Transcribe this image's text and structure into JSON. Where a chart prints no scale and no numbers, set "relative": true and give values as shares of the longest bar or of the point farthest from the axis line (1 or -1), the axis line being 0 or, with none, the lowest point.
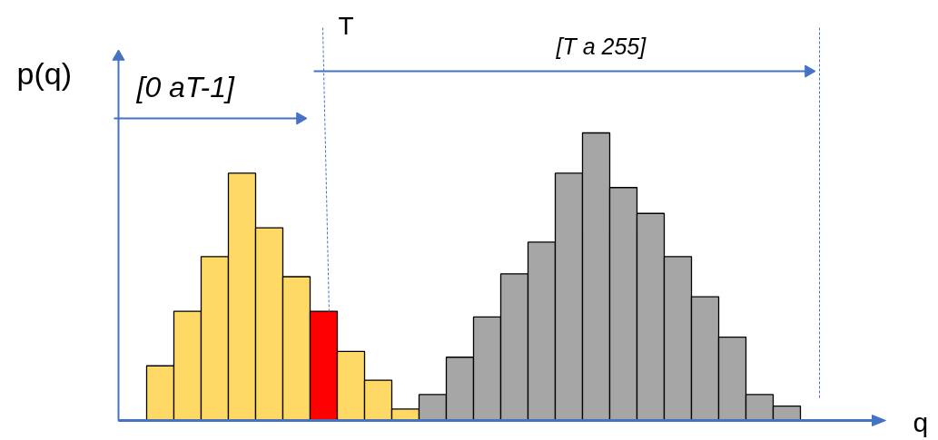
{
  "chart_data": {
    "type": "bar",
    "relative": true,
    "xlabel": "q",
    "ylabel": "p(q)",
    "annotations": [
      "[0 aT-1]",
      "T",
      "[T a 255]"
    ],
    "categories": [
      null,
      null,
      null,
      null,
      null,
      null,
      null,
      null,
      null,
      null,
      null,
      null,
      null,
      null,
      null,
      null,
      null,
      null,
      null,
      null,
      null,
      null,
      null,
      null
    ],
    "values": [
      0.19,
      0.38,
      0.57,
      0.86,
      0.67,
      0.5,
      0.38,
      0.24,
      0.14,
      0.04,
      0.09,
      0.22,
      0.36,
      0.51,
      0.62,
      0.86,
      1,
      0.81,
      0.72,
      0.57,
      0.43,
      0.29,
      0.09,
      0.05
    ],
    "colors": [
      "#ffd966",
      "#ffd966",
      "#ffd966",
      "#ffd966",
      "#ffd966",
      "#ffd966",
      "#ff0000",
      "#ffd966",
      "#ffd966",
      "#ffd966",
      "#a6a6a6",
      "#a6a6a6",
      "#a6a6a6",
      "#a6a6a6",
      "#a6a6a6",
      "#a6a6a6",
      "#a6a6a6",
      "#a6a6a6",
      "#a6a6a6",
      "#a6a6a6",
      "#a6a6a6",
      "#a6a6a6",
      "#a6a6a6",
      "#a6a6a6"
    ]
  }
}
